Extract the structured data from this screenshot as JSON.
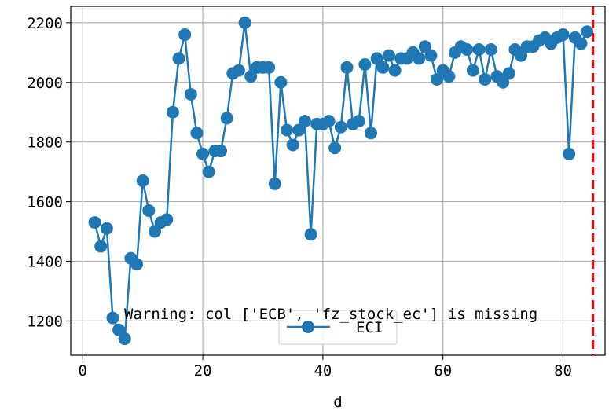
{
  "chart_data": {
    "type": "line",
    "xlabel": "d",
    "ylabel": "",
    "title": "",
    "xlim": [
      -2,
      87
    ],
    "ylim": [
      1085,
      2255
    ],
    "xticks": [
      0,
      20,
      40,
      60,
      80
    ],
    "yticks": [
      1200,
      1400,
      1600,
      1800,
      2000,
      2200
    ],
    "grid": true,
    "legend_position": "bottom-center",
    "series": [
      {
        "name": "ECI",
        "color": "#1f77b4",
        "marker": "circle",
        "x": [
          2,
          3,
          4,
          5,
          6,
          7,
          8,
          9,
          10,
          11,
          12,
          13,
          14,
          15,
          16,
          17,
          18,
          19,
          20,
          21,
          22,
          23,
          24,
          25,
          26,
          27,
          28,
          29,
          30,
          31,
          32,
          33,
          34,
          35,
          36,
          37,
          38,
          39,
          40,
          41,
          42,
          43,
          44,
          45,
          46,
          47,
          48,
          49,
          50,
          51,
          52,
          53,
          54,
          55,
          56,
          57,
          58,
          59,
          60,
          61,
          62,
          63,
          64,
          65,
          66,
          67,
          68,
          69,
          70,
          71,
          72,
          73,
          74,
          75,
          76,
          77,
          78,
          79,
          80,
          81,
          82,
          83,
          84
        ],
        "y": [
          1530,
          1450,
          1510,
          1210,
          1170,
          1140,
          1410,
          1390,
          1670,
          1570,
          1500,
          1530,
          1540,
          1900,
          2080,
          2160,
          1960,
          1830,
          1760,
          1700,
          1770,
          1770,
          1880,
          2030,
          2040,
          2200,
          2020,
          2050,
          2050,
          2050,
          1660,
          2000,
          1840,
          1790,
          1840,
          1870,
          1490,
          1860,
          1860,
          1870,
          1780,
          1850,
          2050,
          1860,
          1870,
          2060,
          1830,
          2080,
          2050,
          2090,
          2040,
          2080,
          2080,
          2100,
          2080,
          2120,
          2090,
          2010,
          2040,
          2020,
          2100,
          2120,
          2110,
          2040,
          2110,
          2010,
          2110,
          2020,
          2000,
          2030,
          2110,
          2090,
          2120,
          2120,
          2140,
          2150,
          2130,
          2150,
          2160,
          1760,
          2150,
          2130,
          2170
        ]
      }
    ],
    "vline": {
      "x": 85,
      "color": "#ff0000",
      "style": "dashed"
    },
    "annotation": "Warning: col ['ECB', 'fz_stock_ec'] is missing"
  }
}
